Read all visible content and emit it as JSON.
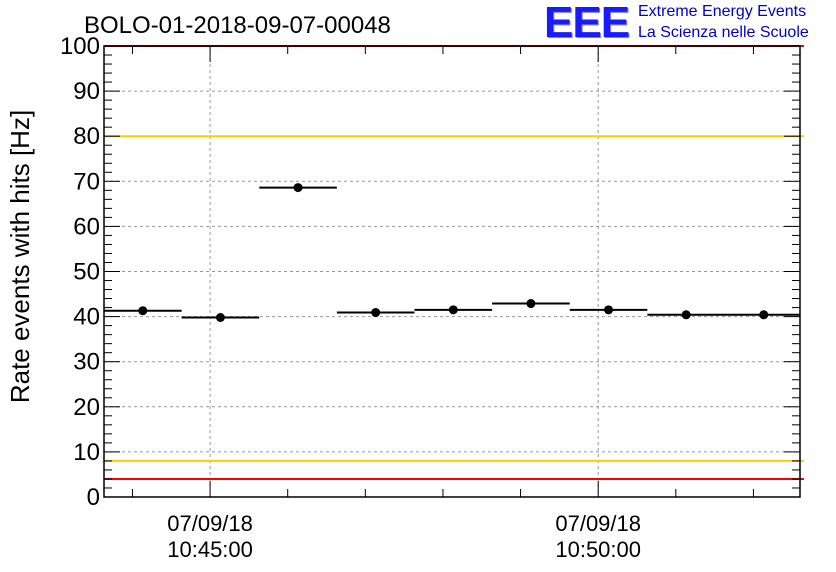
{
  "title": "BOLO-01-2018-09-07-00048",
  "logo": {
    "mark": "EEE",
    "line1": "Extreme Energy Events",
    "line2": "La Scienza nelle Scuole",
    "color": "#0000cc"
  },
  "chart_data": {
    "type": "scatter",
    "title": "BOLO-01-2018-09-07-00048",
    "xlabel": "",
    "ylabel": "Rate events with hits [Hz]",
    "ylim": [
      0,
      100
    ],
    "yticks": [
      0,
      10,
      20,
      30,
      40,
      50,
      60,
      70,
      80,
      90,
      100
    ],
    "xlim": [
      "2018-09-07 10:43:38",
      "2018-09-07 10:52:36"
    ],
    "xticks": [
      {
        "x": "2018-09-07 10:45:00",
        "date": "07/09/18",
        "time": "10:45:00"
      },
      {
        "x": "2018-09-07 10:50:00",
        "date": "07/09/18",
        "time": "10:50:00"
      }
    ],
    "grid": true,
    "series": [
      {
        "points": [
          {
            "x": "2018-09-07 10:44:08",
            "y": 41.3
          },
          {
            "x": "2018-09-07 10:45:08",
            "y": 39.8
          },
          {
            "x": "2018-09-07 10:46:08",
            "y": 68.6
          },
          {
            "x": "2018-09-07 10:47:08",
            "y": 40.9
          },
          {
            "x": "2018-09-07 10:48:08",
            "y": 41.5
          },
          {
            "x": "2018-09-07 10:49:08",
            "y": 42.9
          },
          {
            "x": "2018-09-07 10:50:08",
            "y": 41.5
          },
          {
            "x": "2018-09-07 10:51:08",
            "y": 40.4
          },
          {
            "x": "2018-09-07 10:52:08",
            "y": 40.4
          }
        ],
        "x_error_seconds": 30,
        "color": "#000000"
      }
    ],
    "reference_lines": [
      {
        "y": 100,
        "color": "#ff0000"
      },
      {
        "y": 80,
        "color": "#ffcc00"
      },
      {
        "y": 8,
        "color": "#ffcc00"
      },
      {
        "y": 4,
        "color": "#ff0000"
      }
    ]
  }
}
